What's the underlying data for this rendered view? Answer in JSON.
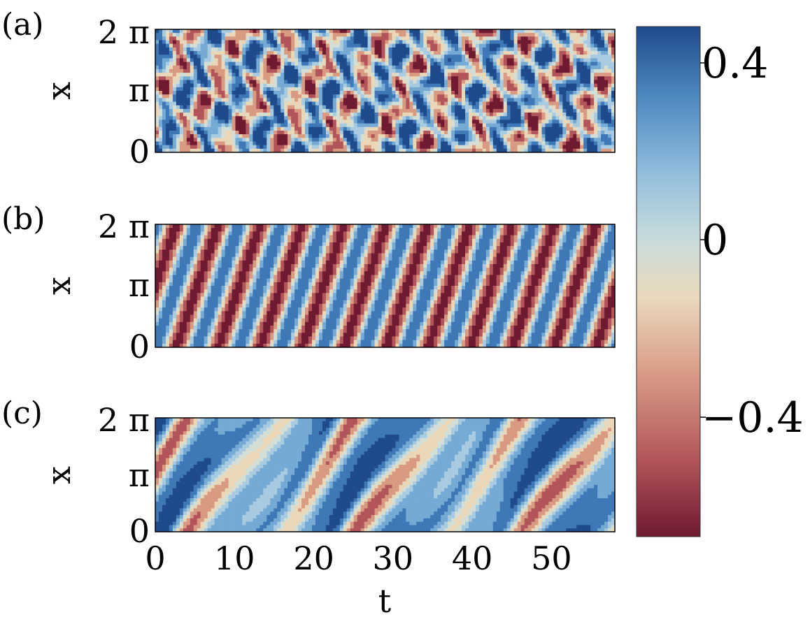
{
  "chart_data": [
    {
      "panel_label": "(a)",
      "type": "heatmap",
      "pattern": "chaotic",
      "xlabel": "",
      "ylabel": "x",
      "x_ticks": [],
      "y_ticks": [
        "0",
        "π",
        "2 π"
      ],
      "xlim": [
        0,
        58
      ],
      "ylim": [
        0,
        6.283
      ]
    },
    {
      "panel_label": "(b)",
      "type": "heatmap",
      "pattern": "traveling-wave",
      "xlabel": "",
      "ylabel": "x",
      "x_ticks": [],
      "y_ticks": [
        "0",
        "π",
        "2 π"
      ],
      "xlim": [
        0,
        58
      ],
      "ylim": [
        0,
        6.283
      ]
    },
    {
      "panel_label": "(c)",
      "type": "heatmap",
      "pattern": "modulated-traveling-wave",
      "xlabel": "t",
      "ylabel": "x",
      "x_ticks": [
        "0",
        "10",
        "20",
        "30",
        "40",
        "50"
      ],
      "y_ticks": [
        "0",
        "π",
        "2 π"
      ],
      "xlim": [
        0,
        58
      ],
      "ylim": [
        0,
        6.283
      ]
    }
  ],
  "colorbar": {
    "ticks": [
      "0.4",
      "0",
      "−0.4"
    ],
    "tick_values": [
      0.4,
      0,
      -0.4
    ],
    "range": [
      -0.6,
      0.6
    ],
    "colors": [
      "#7a1f33",
      "#c0706a",
      "#e8c9a6",
      "#dcdcc8",
      "#a8cbe0",
      "#5e9ccc",
      "#234f8f"
    ]
  },
  "labels": {
    "ylabel": "x",
    "xlabel": "t"
  }
}
